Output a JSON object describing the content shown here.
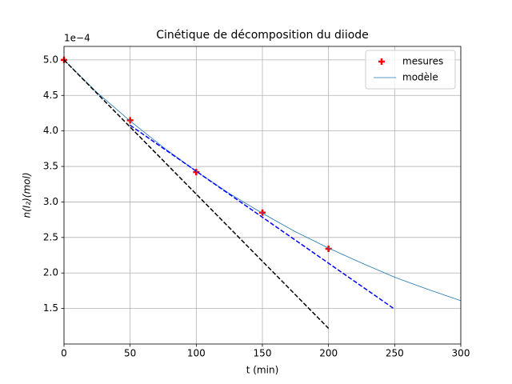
{
  "chart_data": {
    "type": "line",
    "title": "Cinétique de décomposition du diiode",
    "xlabel": "t (min)",
    "ylabel": "n(I₂)(mol)",
    "y_offset_label": "1e−4",
    "xlim": [
      0,
      300
    ],
    "ylim": [
      1.0,
      5.19
    ],
    "xticks": [
      0,
      50,
      100,
      150,
      200,
      250,
      300
    ],
    "yticks": [
      {
        "value": 1.5,
        "label": "1.5"
      },
      {
        "value": 2,
        "label": "2.0"
      },
      {
        "value": 2.5,
        "label": "2.5"
      },
      {
        "value": 3,
        "label": "3.0"
      },
      {
        "value": 3.5,
        "label": "3.5"
      },
      {
        "value": 4,
        "label": "4.0"
      },
      {
        "value": 4.5,
        "label": "4.5"
      },
      {
        "value": 5,
        "label": "5.0"
      }
    ],
    "grid": true,
    "legend": "upper right",
    "series": [
      {
        "name": "mesures",
        "color": "#ff0000",
        "marker": "plus",
        "x": [
          0,
          50,
          100,
          150,
          200
        ],
        "values": [
          5.0,
          4.15,
          3.42,
          2.85,
          2.34
        ]
      },
      {
        "name": "modèle",
        "color": "#1f77b4",
        "marker": "line",
        "x": [
          0,
          25,
          50,
          75,
          100,
          125,
          150,
          175,
          200,
          225,
          250,
          275,
          300
        ],
        "values": [
          5.0,
          4.54,
          4.14,
          3.77,
          3.43,
          3.12,
          2.84,
          2.58,
          2.35,
          2.14,
          1.94,
          1.77,
          1.61
        ]
      },
      {
        "color": "#000000",
        "marker": "dashed",
        "x": [
          0,
          200
        ],
        "values": [
          5.0,
          1.22
        ]
      },
      {
        "color": "#0000ff",
        "marker": "dashed",
        "x": [
          50,
          250
        ],
        "values": [
          4.08,
          1.49
        ]
      }
    ]
  }
}
